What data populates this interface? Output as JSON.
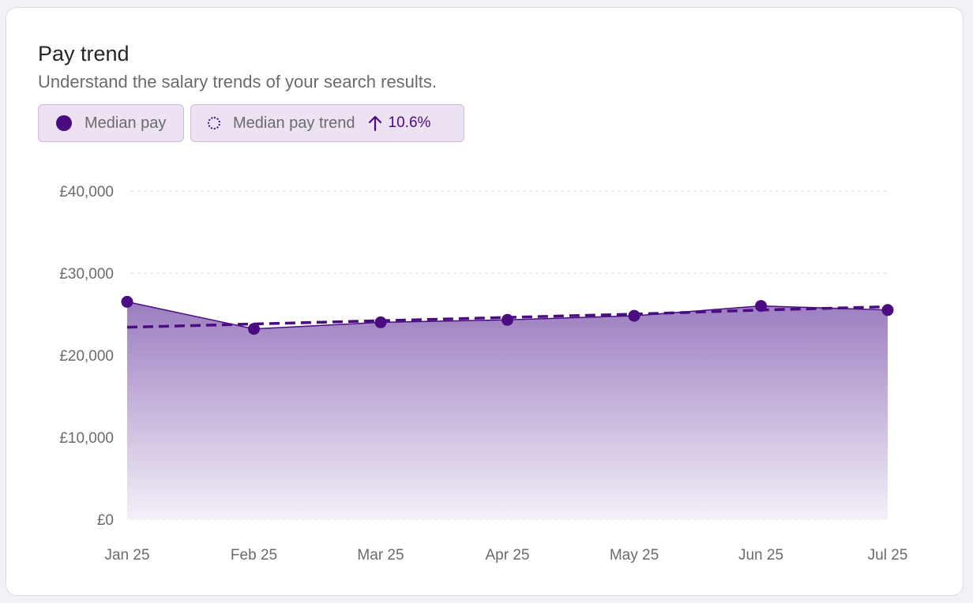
{
  "card": {
    "title": "Pay trend",
    "subtitle": "Understand the salary trends of your search results."
  },
  "legend": {
    "median_label": "Median pay",
    "trend_label": "Median pay trend",
    "trend_icon": "arrow-up-icon",
    "trend_value": "10.6%"
  },
  "colors": {
    "accent": "#4b0c82",
    "area_top": "#9b7dc0",
    "area_bottom": "#f4f0f8",
    "grid": "#d8d8dc",
    "legend_bg": "#ece2f1",
    "legend_border": "#cdbbd9"
  },
  "chart_data": {
    "type": "area",
    "title": "Pay trend",
    "categories": [
      "Jan 25",
      "Feb 25",
      "Mar 25",
      "Apr 25",
      "May 25",
      "Jun 25",
      "Jul 25"
    ],
    "y_ticks": [
      "£0",
      "£10,000",
      "£20,000",
      "£30,000",
      "£40,000"
    ],
    "ylim": [
      0,
      40000
    ],
    "grid": true,
    "series": [
      {
        "name": "Median pay",
        "style": "solid-area-with-markers",
        "values": [
          26500,
          23200,
          24000,
          24300,
          24800,
          26000,
          25500
        ]
      },
      {
        "name": "Median pay trend",
        "style": "dashed",
        "values": [
          23400,
          23800,
          24200,
          24600,
          25000,
          25500,
          25900
        ]
      }
    ]
  }
}
